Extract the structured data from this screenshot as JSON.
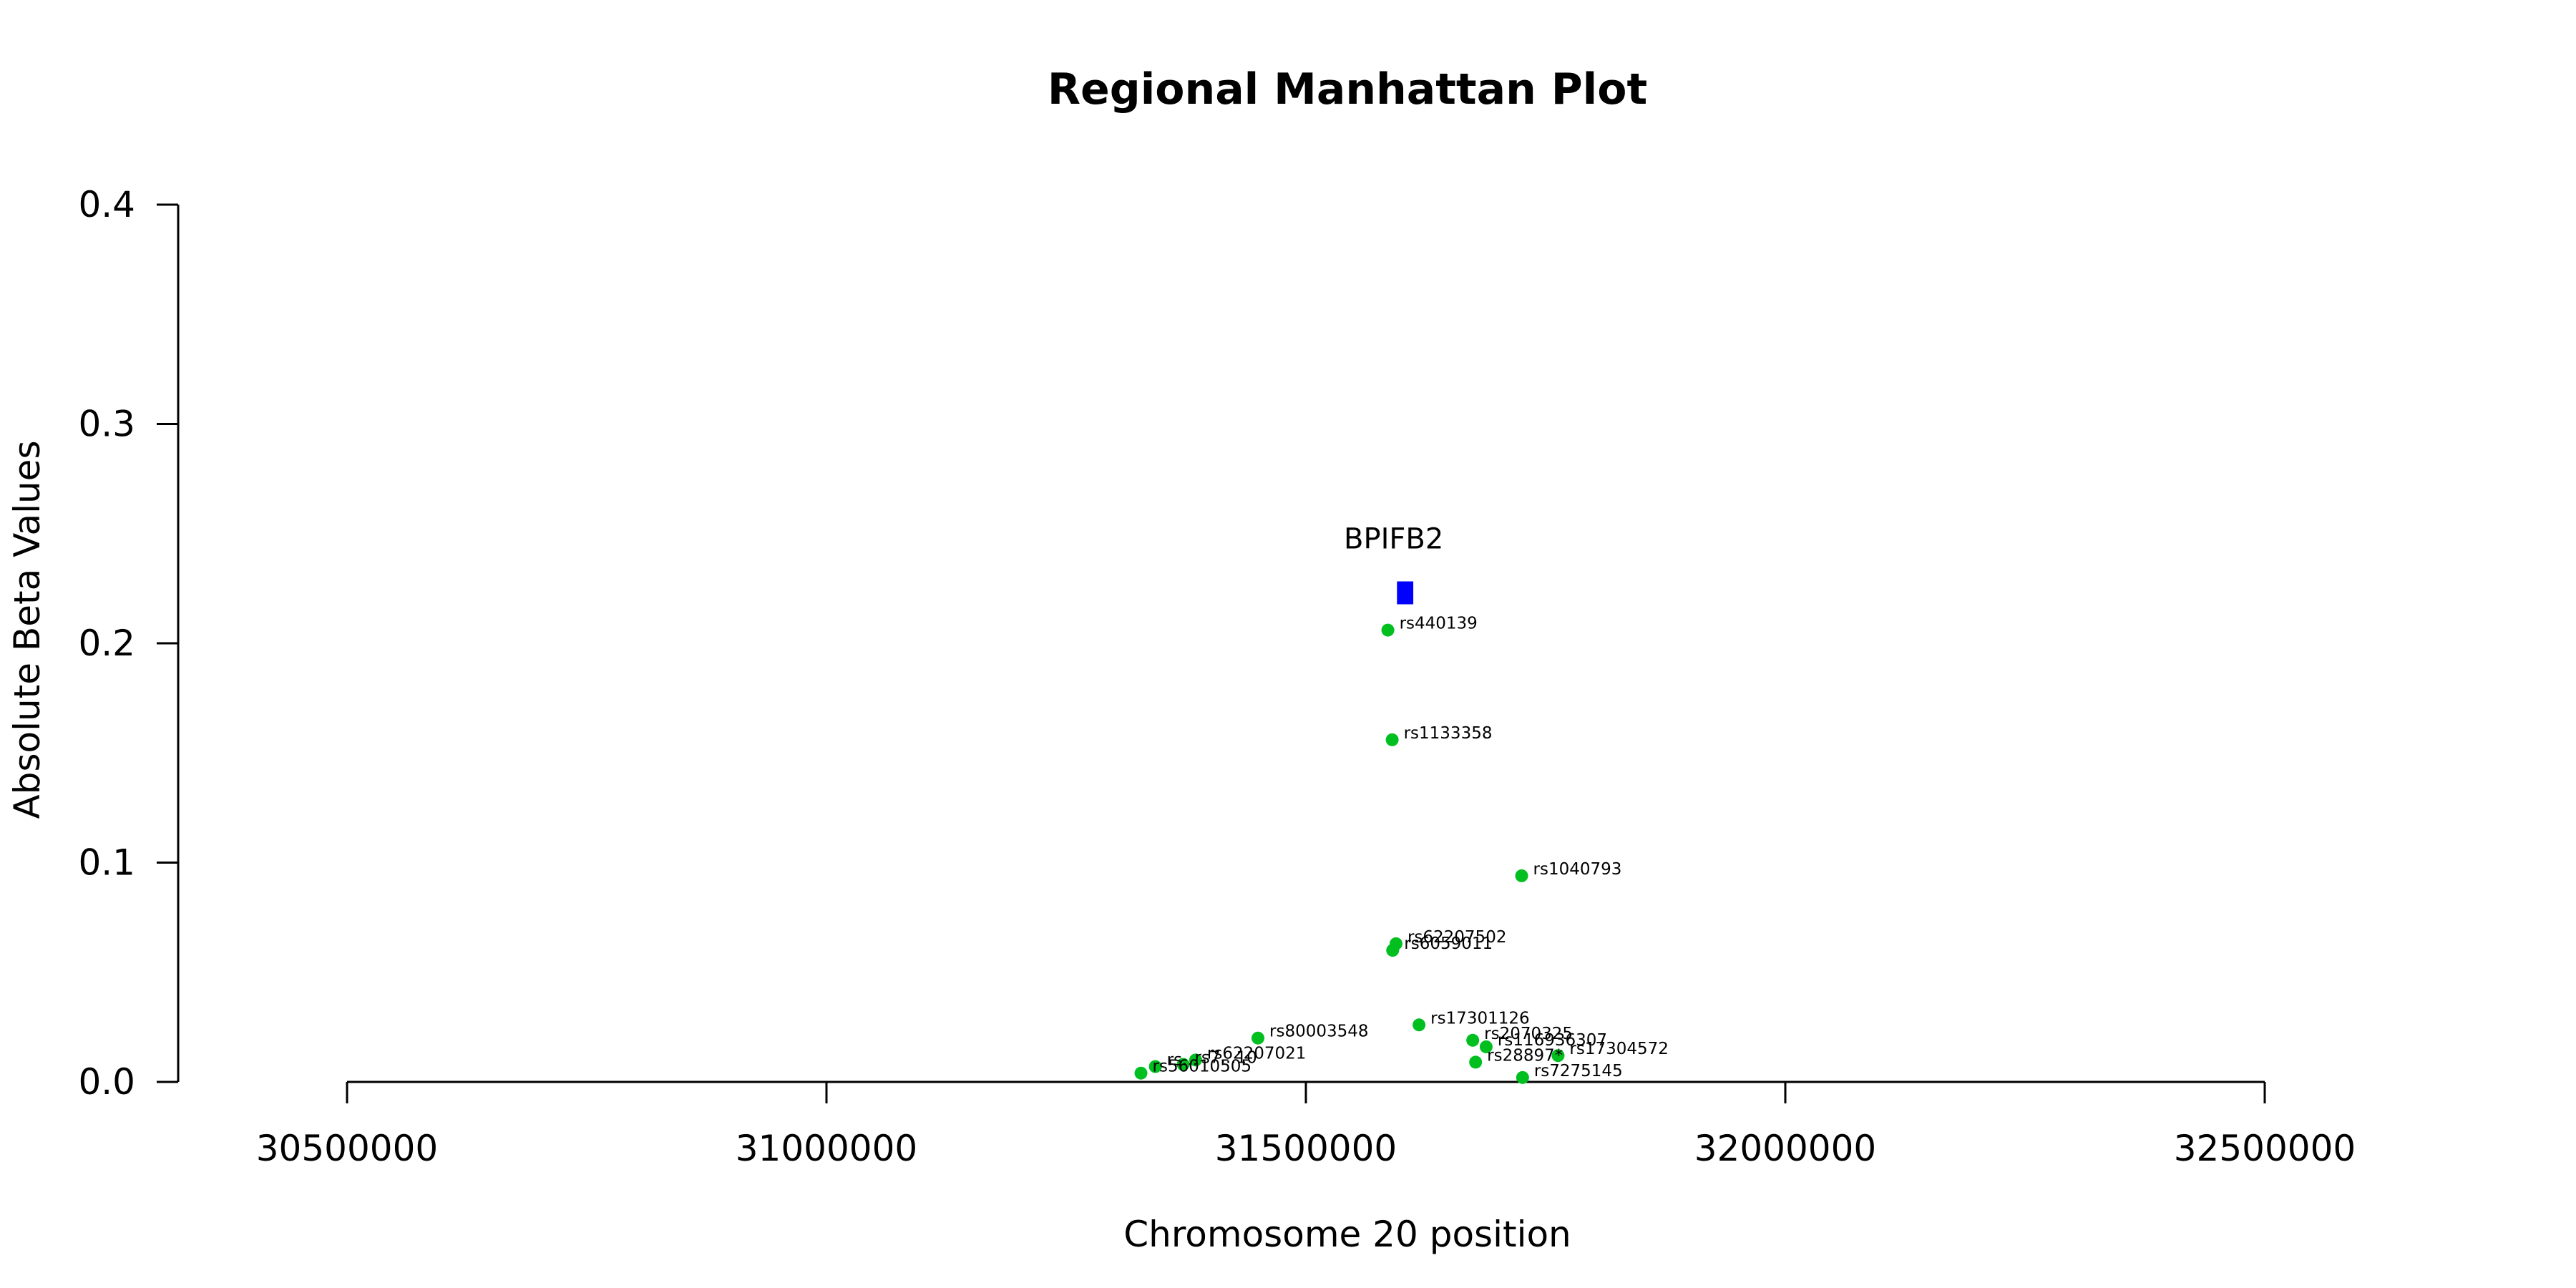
{
  "chart_data": {
    "type": "scatter",
    "title": "Regional Manhattan Plot",
    "xlabel": "Chromosome 20 position",
    "ylabel": "Absolute Beta Values",
    "xlim": [
      30500000,
      32500000
    ],
    "ylim": [
      0,
      0.4
    ],
    "x_ticks": [
      30500000,
      31000000,
      31500000,
      32000000,
      32500000
    ],
    "x_tick_labels": [
      "30500000",
      "31000000",
      "31500000",
      "32000000",
      "32500000"
    ],
    "y_ticks": [
      0,
      0.1,
      0.2,
      0.3,
      0.4
    ],
    "y_tick_labels": [
      "0.0",
      "0.1",
      "0.2",
      "0.3",
      "0.4"
    ],
    "grid": false,
    "point_color": "#00bf1f",
    "gene_color": "#0000ff",
    "gene": {
      "name": "BPIFB2",
      "start": 31595000,
      "end": 31612000,
      "y": 0.223
    },
    "points": [
      {
        "id": "rs440139",
        "x": 31585500,
        "y": 0.206
      },
      {
        "id": "rs1133358",
        "x": 31590000,
        "y": 0.156
      },
      {
        "id": "rs1040793",
        "x": 31725000,
        "y": 0.094
      },
      {
        "id": "rs62207502",
        "x": 31594000,
        "y": 0.063
      },
      {
        "id": "rs6059011",
        "x": 31590500,
        "y": 0.06
      },
      {
        "id": "rs17301126",
        "x": 31618000,
        "y": 0.026
      },
      {
        "id": "rs2070325",
        "x": 31674000,
        "y": 0.019
      },
      {
        "id": "rs116936307",
        "x": 31688000,
        "y": 0.016
      },
      {
        "id": "rs80003548",
        "x": 31450000,
        "y": 0.02
      },
      {
        "id": "rs17304572",
        "x": 31763000,
        "y": 0.012
      },
      {
        "id": "rs28897*",
        "x": 31677000,
        "y": 0.009
      },
      {
        "id": "rs7275145",
        "x": 31726000,
        "y": 0.002
      },
      {
        "id": "rs62207021",
        "x": 31385000,
        "y": 0.01
      },
      {
        "id": "rs7...10",
        "x": 31372000,
        "y": 0.008
      },
      {
        "id": "rs...",
        "x": 31343000,
        "y": 0.007
      },
      {
        "id": "rs56010505",
        "x": 31328000,
        "y": 0.004
      }
    ]
  }
}
